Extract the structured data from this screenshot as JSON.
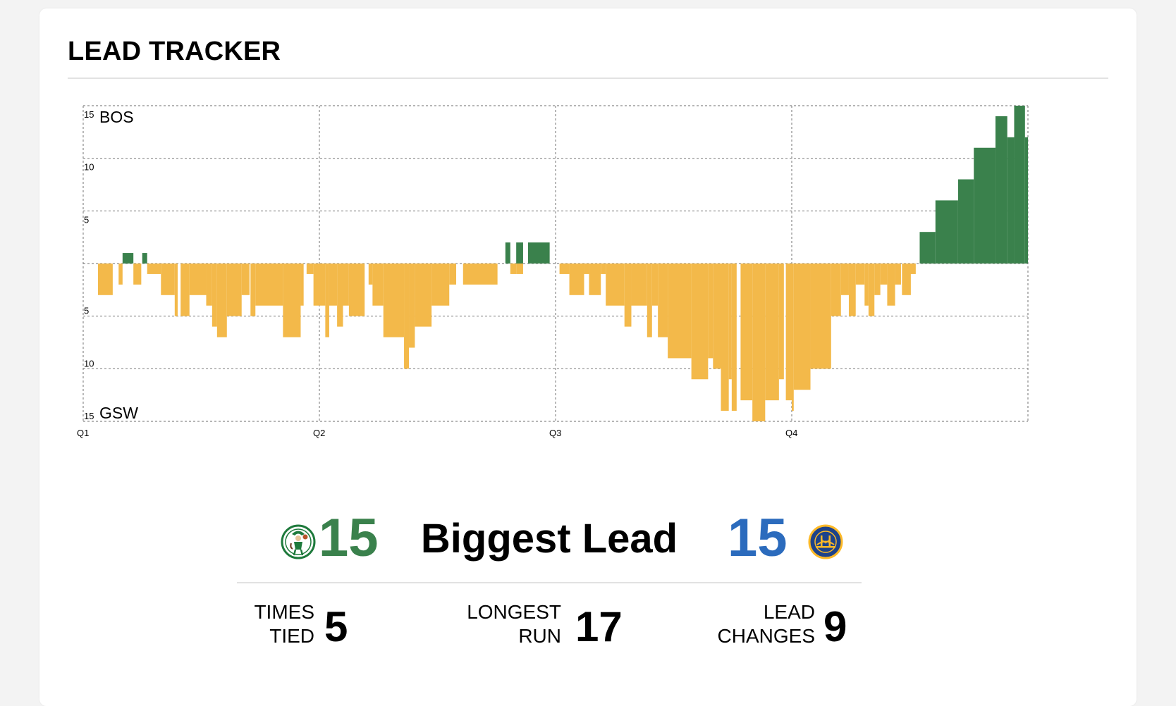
{
  "header": {
    "title": "LEAD TRACKER"
  },
  "colors": {
    "bos": "#3a814c",
    "gsw_bars": "#f3b94a",
    "gsw_text": "#2b6bbd",
    "grid": "#8a8a8a"
  },
  "chart_data": {
    "type": "bar",
    "orientation": "diverging",
    "title": "",
    "xlabel": "",
    "ylabel": "",
    "x_range": [
      0,
      48
    ],
    "x_unit": "minutes elapsed",
    "quarter_ticks": [
      {
        "label": "Q1",
        "x": 0
      },
      {
        "label": "Q2",
        "x": 12
      },
      {
        "label": "Q3",
        "x": 24
      },
      {
        "label": "Q4",
        "x": 36
      }
    ],
    "y_range": [
      -15,
      15
    ],
    "y_ticks": [
      {
        "label": "15",
        "value": 15
      },
      {
        "label": "10",
        "value": 10
      },
      {
        "label": "5",
        "value": 5
      },
      {
        "label": "5",
        "value": -5
      },
      {
        "label": "10",
        "value": -10
      },
      {
        "label": "15",
        "value": -15
      }
    ],
    "team_labels": {
      "top": "BOS",
      "bottom": "GSW"
    },
    "grid": true,
    "segments": [
      {
        "x0": 0.75,
        "x1": 1.5,
        "lead": -3
      },
      {
        "x0": 1.8,
        "x1": 2.0,
        "lead": -2
      },
      {
        "x0": 2.0,
        "x1": 2.55,
        "lead": 1
      },
      {
        "x0": 2.55,
        "x1": 2.95,
        "lead": -2
      },
      {
        "x0": 3.0,
        "x1": 3.25,
        "lead": 1
      },
      {
        "x0": 3.25,
        "x1": 3.95,
        "lead": -1
      },
      {
        "x0": 3.95,
        "x1": 4.65,
        "lead": -3
      },
      {
        "x0": 4.65,
        "x1": 4.8,
        "lead": -5
      },
      {
        "x0": 4.95,
        "x1": 5.4,
        "lead": -5
      },
      {
        "x0": 5.4,
        "x1": 6.25,
        "lead": -3
      },
      {
        "x0": 6.25,
        "x1": 6.55,
        "lead": -4
      },
      {
        "x0": 6.55,
        "x1": 6.8,
        "lead": -6
      },
      {
        "x0": 6.8,
        "x1": 7.3,
        "lead": -7
      },
      {
        "x0": 7.3,
        "x1": 8.05,
        "lead": -5
      },
      {
        "x0": 8.05,
        "x1": 8.45,
        "lead": -3
      },
      {
        "x0": 8.5,
        "x1": 8.75,
        "lead": -5
      },
      {
        "x0": 8.75,
        "x1": 10.15,
        "lead": -4
      },
      {
        "x0": 10.15,
        "x1": 11.05,
        "lead": -7
      },
      {
        "x0": 11.05,
        "x1": 11.2,
        "lead": -4
      },
      {
        "x0": 11.35,
        "x1": 11.7,
        "lead": -1
      },
      {
        "x0": 11.7,
        "x1": 12.3,
        "lead": -4
      },
      {
        "x0": 12.3,
        "x1": 12.5,
        "lead": -7
      },
      {
        "x0": 12.5,
        "x1": 12.9,
        "lead": -4
      },
      {
        "x0": 12.9,
        "x1": 13.2,
        "lead": -6
      },
      {
        "x0": 13.2,
        "x1": 13.5,
        "lead": -4
      },
      {
        "x0": 13.5,
        "x1": 14.3,
        "lead": -5
      },
      {
        "x0": 14.5,
        "x1": 14.7,
        "lead": -2
      },
      {
        "x0": 14.7,
        "x1": 15.25,
        "lead": -4
      },
      {
        "x0": 15.25,
        "x1": 16.3,
        "lead": -7
      },
      {
        "x0": 16.3,
        "x1": 16.55,
        "lead": -10
      },
      {
        "x0": 16.55,
        "x1": 16.85,
        "lead": -8
      },
      {
        "x0": 16.85,
        "x1": 17.7,
        "lead": -6
      },
      {
        "x0": 17.7,
        "x1": 18.6,
        "lead": -4
      },
      {
        "x0": 18.6,
        "x1": 18.95,
        "lead": -2
      },
      {
        "x0": 19.3,
        "x1": 21.05,
        "lead": -2
      },
      {
        "x0": 21.45,
        "x1": 21.7,
        "lead": 2
      },
      {
        "x0": 21.7,
        "x1": 22.0,
        "lead": -1
      },
      {
        "x0": 22.0,
        "x1": 22.35,
        "lead": -1
      },
      {
        "x0": 22.0,
        "x1": 22.35,
        "lead": 2
      },
      {
        "x0": 22.6,
        "x1": 23.7,
        "lead": 2
      },
      {
        "x0": 24.2,
        "x1": 24.7,
        "lead": -1
      },
      {
        "x0": 24.7,
        "x1": 25.45,
        "lead": -3
      },
      {
        "x0": 25.45,
        "x1": 25.7,
        "lead": -1
      },
      {
        "x0": 25.7,
        "x1": 26.3,
        "lead": -3
      },
      {
        "x0": 26.3,
        "x1": 26.55,
        "lead": -1
      },
      {
        "x0": 26.55,
        "x1": 27.5,
        "lead": -4
      },
      {
        "x0": 27.5,
        "x1": 27.85,
        "lead": -6
      },
      {
        "x0": 27.85,
        "x1": 28.65,
        "lead": -4
      },
      {
        "x0": 28.65,
        "x1": 28.9,
        "lead": -7
      },
      {
        "x0": 28.9,
        "x1": 29.2,
        "lead": -4
      },
      {
        "x0": 29.2,
        "x1": 29.7,
        "lead": -7
      },
      {
        "x0": 29.7,
        "x1": 30.9,
        "lead": -9
      },
      {
        "x0": 30.9,
        "x1": 31.75,
        "lead": -11
      },
      {
        "x0": 31.75,
        "x1": 32.0,
        "lead": -9
      },
      {
        "x0": 32.0,
        "x1": 32.4,
        "lead": -10
      },
      {
        "x0": 32.4,
        "x1": 32.8,
        "lead": -14
      },
      {
        "x0": 32.8,
        "x1": 32.95,
        "lead": -11
      },
      {
        "x0": 32.95,
        "x1": 33.2,
        "lead": -14
      },
      {
        "x0": 33.4,
        "x1": 34.0,
        "lead": -13
      },
      {
        "x0": 34.0,
        "x1": 34.65,
        "lead": -15
      },
      {
        "x0": 34.65,
        "x1": 35.35,
        "lead": -13
      },
      {
        "x0": 35.35,
        "x1": 35.6,
        "lead": -11
      },
      {
        "x0": 35.7,
        "x1": 36.0,
        "lead": -13
      },
      {
        "x0": 36.0,
        "x1": 36.1,
        "lead": -14
      },
      {
        "x0": 36.1,
        "x1": 36.95,
        "lead": -12
      },
      {
        "x0": 36.95,
        "x1": 38.0,
        "lead": -10
      },
      {
        "x0": 38.0,
        "x1": 38.5,
        "lead": -5
      },
      {
        "x0": 38.5,
        "x1": 38.9,
        "lead": -3
      },
      {
        "x0": 38.9,
        "x1": 39.25,
        "lead": -5
      },
      {
        "x0": 39.25,
        "x1": 39.7,
        "lead": -2
      },
      {
        "x0": 39.7,
        "x1": 39.9,
        "lead": -4
      },
      {
        "x0": 39.9,
        "x1": 40.2,
        "lead": -5
      },
      {
        "x0": 40.2,
        "x1": 40.5,
        "lead": -3
      },
      {
        "x0": 40.5,
        "x1": 40.85,
        "lead": -2
      },
      {
        "x0": 40.85,
        "x1": 41.25,
        "lead": -4
      },
      {
        "x0": 41.25,
        "x1": 41.55,
        "lead": -2
      },
      {
        "x0": 41.6,
        "x1": 42.05,
        "lead": -3
      },
      {
        "x0": 42.0,
        "x1": 42.3,
        "lead": -1
      },
      {
        "x0": 42.5,
        "x1": 43.3,
        "lead": 3
      },
      {
        "x0": 43.3,
        "x1": 44.45,
        "lead": 6
      },
      {
        "x0": 44.45,
        "x1": 45.25,
        "lead": 8
      },
      {
        "x0": 45.25,
        "x1": 46.35,
        "lead": 11
      },
      {
        "x0": 46.35,
        "x1": 46.95,
        "lead": 14
      },
      {
        "x0": 46.95,
        "x1": 47.3,
        "lead": 12
      },
      {
        "x0": 47.3,
        "x1": 47.85,
        "lead": 15
      },
      {
        "x0": 47.85,
        "x1": 48.0,
        "lead": 12
      }
    ]
  },
  "stats": {
    "biggest_lead": {
      "label": "Biggest Lead",
      "bos": "15",
      "gsw": "15"
    },
    "times_tied": {
      "label": "TIMES\nTIED",
      "value": "5"
    },
    "longest_run": {
      "label": "LONGEST\nRUN",
      "value": "17"
    },
    "lead_changes": {
      "label": "LEAD\nCHANGES",
      "value": "9"
    }
  },
  "logos": {
    "bos": "celtics-logo",
    "gsw": "warriors-logo"
  }
}
